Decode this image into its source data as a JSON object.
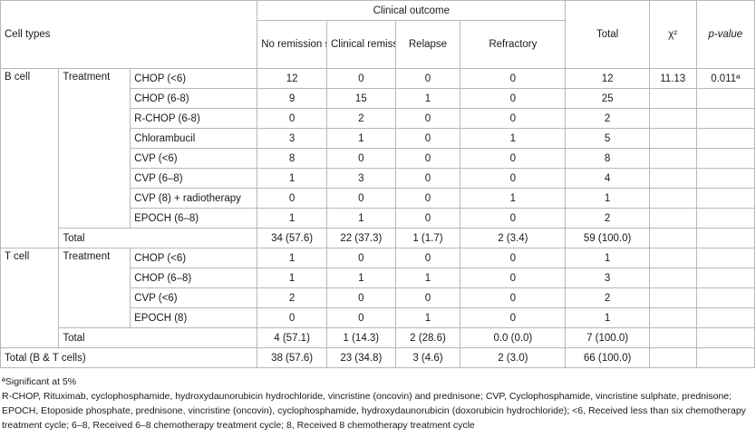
{
  "header": {
    "clinical_outcome": "Clinical outcome",
    "no_remission": "No remission status",
    "clinical_remission": "Clinical remission",
    "relapse": "Relapse",
    "refractory": "Refractory",
    "total": "Total",
    "chi": "χ²",
    "pvalue": "p-value",
    "cell_types": "Cell types"
  },
  "b_cell": {
    "label": "B cell",
    "treatment_label": "Treatment",
    "chi": "11.13",
    "pvalue": "0.011ª",
    "rows": [
      [
        "CHOP (<6)",
        "12",
        "0",
        "0",
        "0",
        "12"
      ],
      [
        "CHOP (6-8)",
        "9",
        "15",
        "1",
        "0",
        "25"
      ],
      [
        "R-CHOP (6-8)",
        "0",
        "2",
        "0",
        "0",
        "2"
      ],
      [
        "Chlorambucil",
        "3",
        "1",
        "0",
        "1",
        "5"
      ],
      [
        "CVP (<6)",
        "8",
        "0",
        "0",
        "0",
        "8"
      ],
      [
        "CVP (6–8)",
        "1",
        "3",
        "0",
        "0",
        "4"
      ],
      [
        "CVP (8) + radiotherapy",
        "0",
        "0",
        "0",
        "1",
        "1"
      ],
      [
        "EPOCH (6–8)",
        "1",
        "1",
        "0",
        "0",
        "2"
      ]
    ],
    "total": [
      "Total",
      "34 (57.6)",
      "22 (37.3)",
      "1 (1.7)",
      "2 (3.4)",
      "59 (100.0)"
    ]
  },
  "t_cell": {
    "label": "T cell",
    "treatment_label": "Treatment",
    "rows": [
      [
        "CHOP (<6)",
        "1",
        "0",
        "0",
        "0",
        "1"
      ],
      [
        "CHOP (6–8)",
        "1",
        "1",
        "1",
        "0",
        "3"
      ],
      [
        "CVP (<6)",
        "2",
        "0",
        "0",
        "0",
        "2"
      ],
      [
        "EPOCH (8)",
        "0",
        "0",
        "1",
        "0",
        "1"
      ]
    ],
    "total": [
      "Total",
      "4 (57.1)",
      "1 (14.3)",
      "2 (28.6)",
      "0.0 (0.0)",
      "7 (100.0)"
    ]
  },
  "grand_total": [
    "Total (B & T cells)",
    "38 (57.6)",
    "23 (34.8)",
    "3 (4.6)",
    "2 (3.0)",
    "66 (100.0)"
  ],
  "footnotes": {
    "significance": "ªSignificant at 5%",
    "abbreviations": "R-CHOP, Rituximab, cyclophosphamide, hydroxydaunorubicin hydrochloride, vincristine (oncovin) and prednisone; CVP, Cyclophosphamide, vincristine sulphate, prednisone; EPOCH, Etoposide phosphate, prednisone, vincristine (oncovin), cyclophosphamide, hydroxydaunorubicin (doxorubicin hydrochloride); <6, Received less than six chemotherapy treatment cycle; 6–8, Received 6–8 chemotherapy treatment cycle; 8, Received 8 chemotherapy treatment cycle"
  }
}
